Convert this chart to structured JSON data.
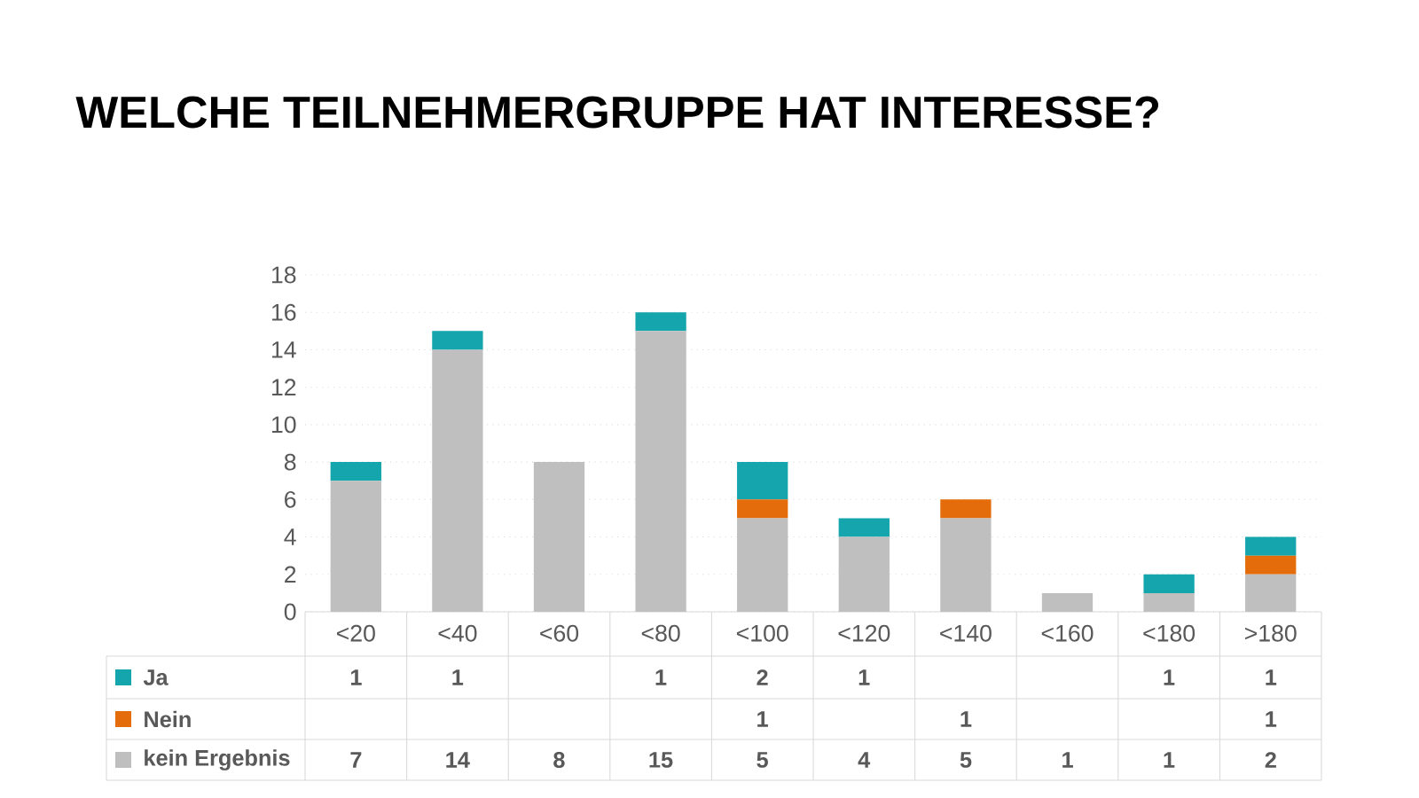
{
  "chart_data": {
    "type": "bar",
    "stacked": true,
    "title": "WELCHE TEILNEHMERGRUPPE HAT INTERESSE?",
    "categories": [
      "<20",
      "<40",
      "<60",
      "<80",
      "<100",
      "<120",
      "<140",
      "<160",
      "<180",
      ">180"
    ],
    "series": [
      {
        "name": "kein Ergebnis",
        "color": "#bfbfbf",
        "values": [
          7,
          14,
          8,
          15,
          5,
          4,
          5,
          1,
          1,
          2
        ]
      },
      {
        "name": "Nein",
        "color": "#e46c0a",
        "values": [
          null,
          null,
          null,
          null,
          1,
          null,
          1,
          null,
          null,
          1
        ]
      },
      {
        "name": "Ja",
        "color": "#14a5ad",
        "values": [
          1,
          1,
          null,
          1,
          2,
          1,
          null,
          null,
          1,
          1
        ]
      }
    ],
    "ylim": [
      0,
      18
    ],
    "yticks": [
      0,
      2,
      4,
      6,
      8,
      10,
      12,
      14,
      16,
      18
    ],
    "grid": "y",
    "legend": "bottom",
    "data_labels": true
  }
}
